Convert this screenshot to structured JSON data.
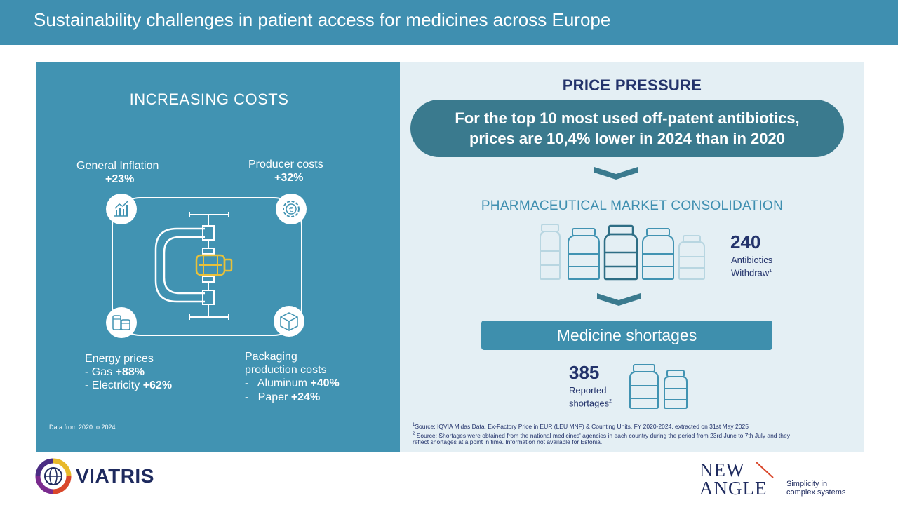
{
  "header": {
    "title": "Sustainability challenges in patient access for medicines across Europe"
  },
  "costs": {
    "title": "INCREASING COSTS",
    "inflation": {
      "label": "General Inflation",
      "value": "+23%"
    },
    "producer": {
      "label": "Producer costs",
      "value": "+32%"
    },
    "energy": {
      "label": "Energy prices",
      "gas_label": "- Gas",
      "gas_value": "+88%",
      "elec_label": "- Electricity",
      "elec_value": "+62%"
    },
    "packaging": {
      "label_line1": "Packaging",
      "label_line2": "production costs",
      "alu_label": "-   Aluminum",
      "alu_value": "+40%",
      "paper_label": "-   Paper",
      "paper_value": "+24%"
    },
    "note": "Data from 2020 to 2024"
  },
  "price": {
    "title": "PRICE PRESSURE",
    "statement_line1": "For the top 10 most used off-patent antibiotics,",
    "statement_line2": "prices are 10,4% lower in 2024 than in 2020"
  },
  "consolidation": {
    "title": "PHARMACEUTICAL MARKET CONSOLIDATION",
    "number": "240",
    "label_line1": "Antibiotics",
    "label_line2": "Withdraw",
    "label_sup": "1"
  },
  "shortages": {
    "title": "Medicine shortages",
    "number": "385",
    "label_line1": "Reported",
    "label_line2": "shortages",
    "label_sup": "2"
  },
  "footnotes": {
    "f1_sup": "1",
    "f1": "Source: IQVIA Midas Data, Ex-Factory Price in EUR (LEU MNF) & Counting Units, FY 2020-2024, extracted on 31st May 2025",
    "f2_sup": "2",
    "f2_line1": " Source: Shortages were obtained from the national medicines' agencies in each country during the period from 23rd June to 7th July and they",
    "f2_line2": "reflect shortages at a point in time. Information not available for Estonia."
  },
  "logos": {
    "viatris": "VIATRIS",
    "newangle_line1": "NEW",
    "newangle_line2": "ANGLE",
    "tagline_line1": "Simplicity in",
    "tagline_line2": "complex systems"
  },
  "colors": {
    "header": "#3f8fb0",
    "navy": "#23336b",
    "pill": "#3a7a8e",
    "light_panel": "#e4eff4",
    "accent_yellow": "#e8c13a"
  },
  "icons": [
    "chart-icon",
    "euro-gear-icon",
    "cans-icon",
    "box-icon",
    "clamp-icon",
    "bottle-icon",
    "chevron-down-icon"
  ]
}
